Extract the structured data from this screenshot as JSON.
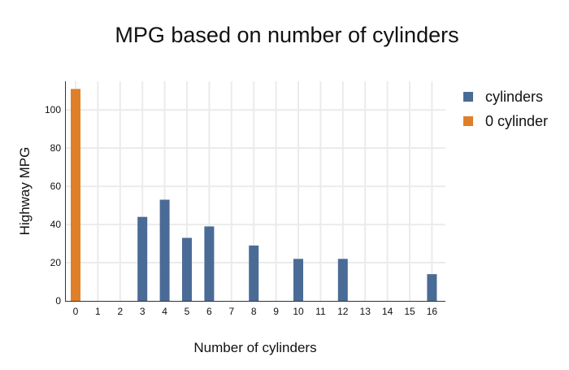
{
  "chart_data": {
    "type": "bar",
    "title": "MPG based on number of cylinders",
    "xlabel": "Number of cylinders",
    "ylabel": "Highway MPG",
    "x_ticks": [
      "0",
      "1",
      "2",
      "3",
      "4",
      "5",
      "6",
      "7",
      "8",
      "9",
      "10",
      "11",
      "12",
      "13",
      "14",
      "15",
      "16"
    ],
    "y_ticks": [
      0,
      20,
      40,
      60,
      80,
      100
    ],
    "ylim": [
      0,
      115
    ],
    "grid": true,
    "legend_position": "right",
    "series": [
      {
        "name": "cylinders",
        "color": "#4a6b96",
        "points": [
          {
            "x": 3,
            "y": 44
          },
          {
            "x": 4,
            "y": 53
          },
          {
            "x": 5,
            "y": 33
          },
          {
            "x": 6,
            "y": 39
          },
          {
            "x": 8,
            "y": 29
          },
          {
            "x": 10,
            "y": 22
          },
          {
            "x": 12,
            "y": 22
          },
          {
            "x": 16,
            "y": 14
          }
        ]
      },
      {
        "name": "0 cylinder",
        "color": "#e07f2a",
        "points": [
          {
            "x": 0,
            "y": 111
          }
        ]
      }
    ]
  }
}
